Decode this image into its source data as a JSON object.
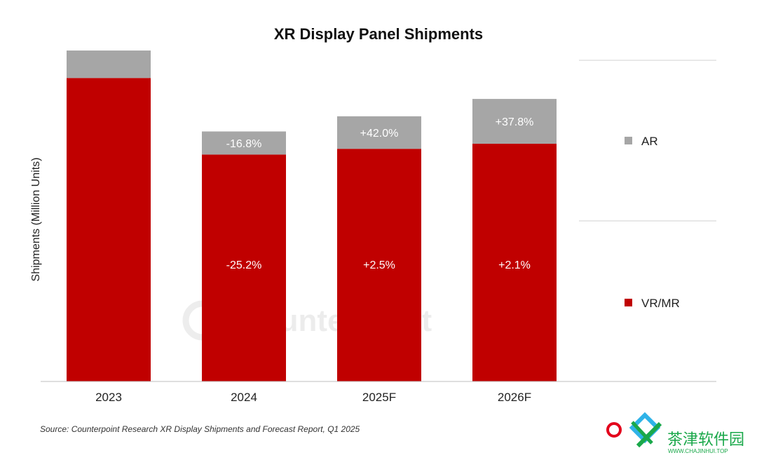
{
  "chart_data": {
    "type": "bar",
    "stacked": true,
    "title": "XR Display Panel Shipments",
    "ylabel": "Shipments (Million Units)",
    "categories": [
      "2023",
      "2024",
      "2025F",
      "2026F"
    ],
    "series": [
      {
        "name": "VR/MR",
        "color": "#c00000",
        "values": [
          42.0,
          31.4,
          32.2,
          32.9
        ],
        "labels": [
          "",
          "-25.2%",
          "+2.5%",
          "+2.1%"
        ]
      },
      {
        "name": "AR",
        "color": "#a6a6a6",
        "values": [
          3.8,
          3.2,
          4.5,
          6.2
        ],
        "labels": [
          "",
          "-16.8%",
          "+42.0%",
          "+37.8%"
        ]
      }
    ],
    "ylim": [
      0,
      46
    ],
    "legend_position": "right",
    "grid": false
  },
  "source": "Source: Counterpoint Research XR Display Shipments and Forecast Report, Q1 2025",
  "watermark": "Counterpoint",
  "corner_logo": {
    "text": "茶津软件园",
    "url": "WWW.CHAJINHUI.TOP"
  }
}
